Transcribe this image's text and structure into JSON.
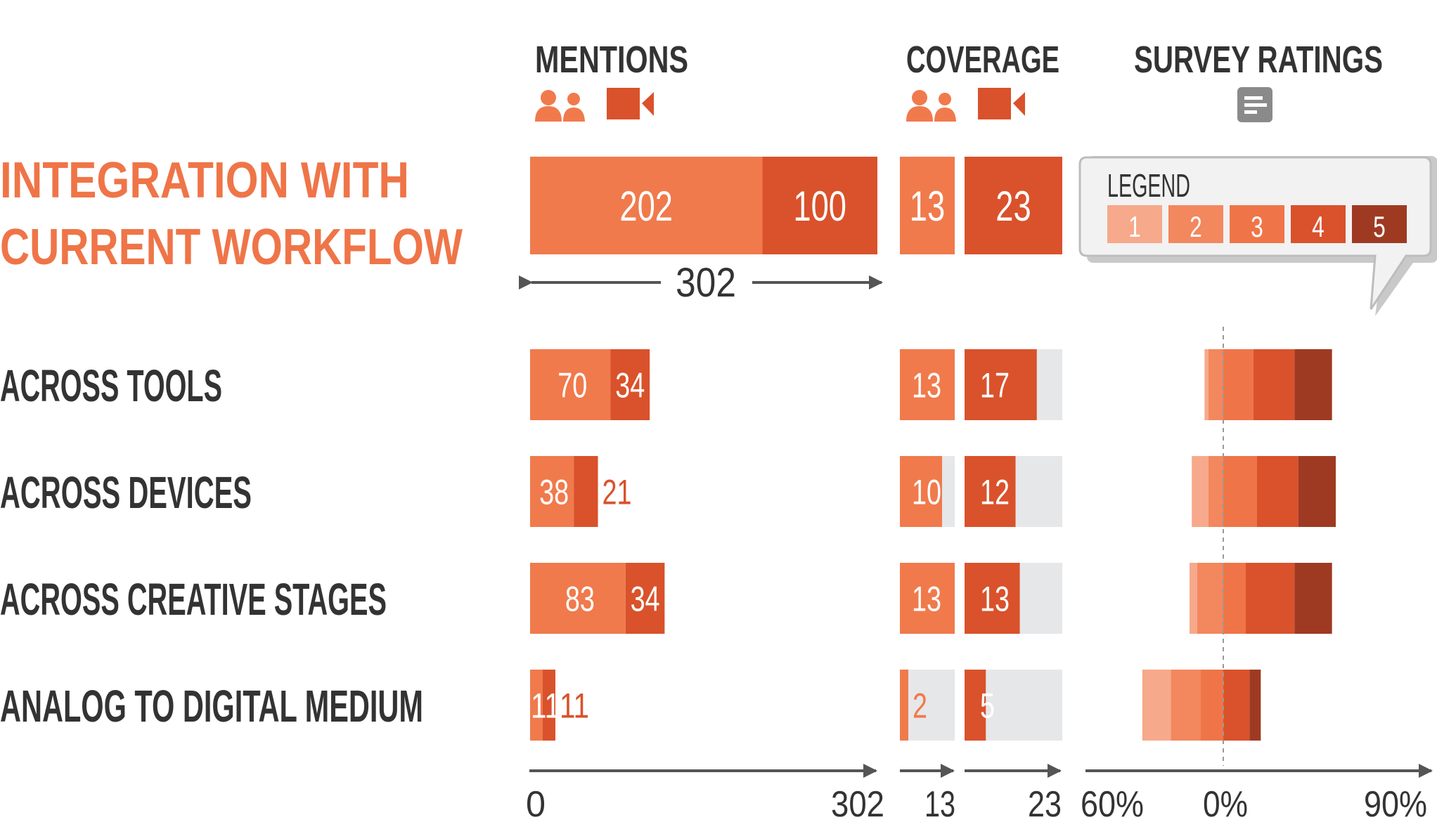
{
  "headers": {
    "mentions": "MENTIONS",
    "coverage": "COVERAGE",
    "survey": "SURVEY RATINGS"
  },
  "icons": {
    "people": "people-icon",
    "video": "video-camera-icon",
    "survey": "survey-document-icon"
  },
  "colors": {
    "title": "#ef7548",
    "text": "#333333",
    "people": "#f07a4c",
    "video": "#d9522b",
    "empty": "#e6e7e9",
    "axis": "#666666",
    "rating_1": "#f6a98b",
    "rating_2": "#f3875e",
    "rating_3": "#ef7548",
    "rating_4": "#d9522b",
    "rating_5": "#9e3a22"
  },
  "legend": {
    "title": "LEGEND",
    "items": [
      "1",
      "2",
      "3",
      "4",
      "5"
    ]
  },
  "chart_data": {
    "type": "bar",
    "categories": [
      "INTEGRATION WITH CURRENT WORKFLOW",
      "ACROSS TOOLS",
      "ACROSS DEVICES",
      "ACROSS CREATIVE STAGES",
      "ANALOG TO DIGITAL MEDIUM"
    ],
    "mentions": {
      "series": [
        {
          "icon": "people",
          "values": [
            202,
            70,
            38,
            83,
            11
          ]
        },
        {
          "icon": "video",
          "values": [
            100,
            34,
            21,
            34,
            11
          ]
        }
      ],
      "total_label": "302",
      "axis": {
        "min_label": "0",
        "max_label": "302",
        "max": 302
      }
    },
    "coverage": {
      "people": {
        "values": [
          13,
          13,
          10,
          13,
          2
        ],
        "max": 13,
        "axis_label": "13"
      },
      "video": {
        "values": [
          23,
          17,
          12,
          13,
          5
        ],
        "max": 23,
        "axis_label": "23"
      }
    },
    "survey": {
      "axis_labels": [
        "60%",
        "0%",
        "90%"
      ],
      "range": [
        -60,
        90
      ],
      "rows": [
        null,
        {
          "negative": [
            5,
            20
          ],
          "positive": [
            40,
            55,
            50
          ]
        },
        {
          "negative": [
            22,
            20
          ],
          "positive": [
            45,
            55,
            50
          ]
        },
        {
          "negative": [
            10,
            35
          ],
          "positive": [
            30,
            65,
            50
          ]
        },
        {
          "negative": [
            38,
            40,
            30
          ],
          "positive": [
            35,
            15
          ]
        }
      ]
    }
  }
}
